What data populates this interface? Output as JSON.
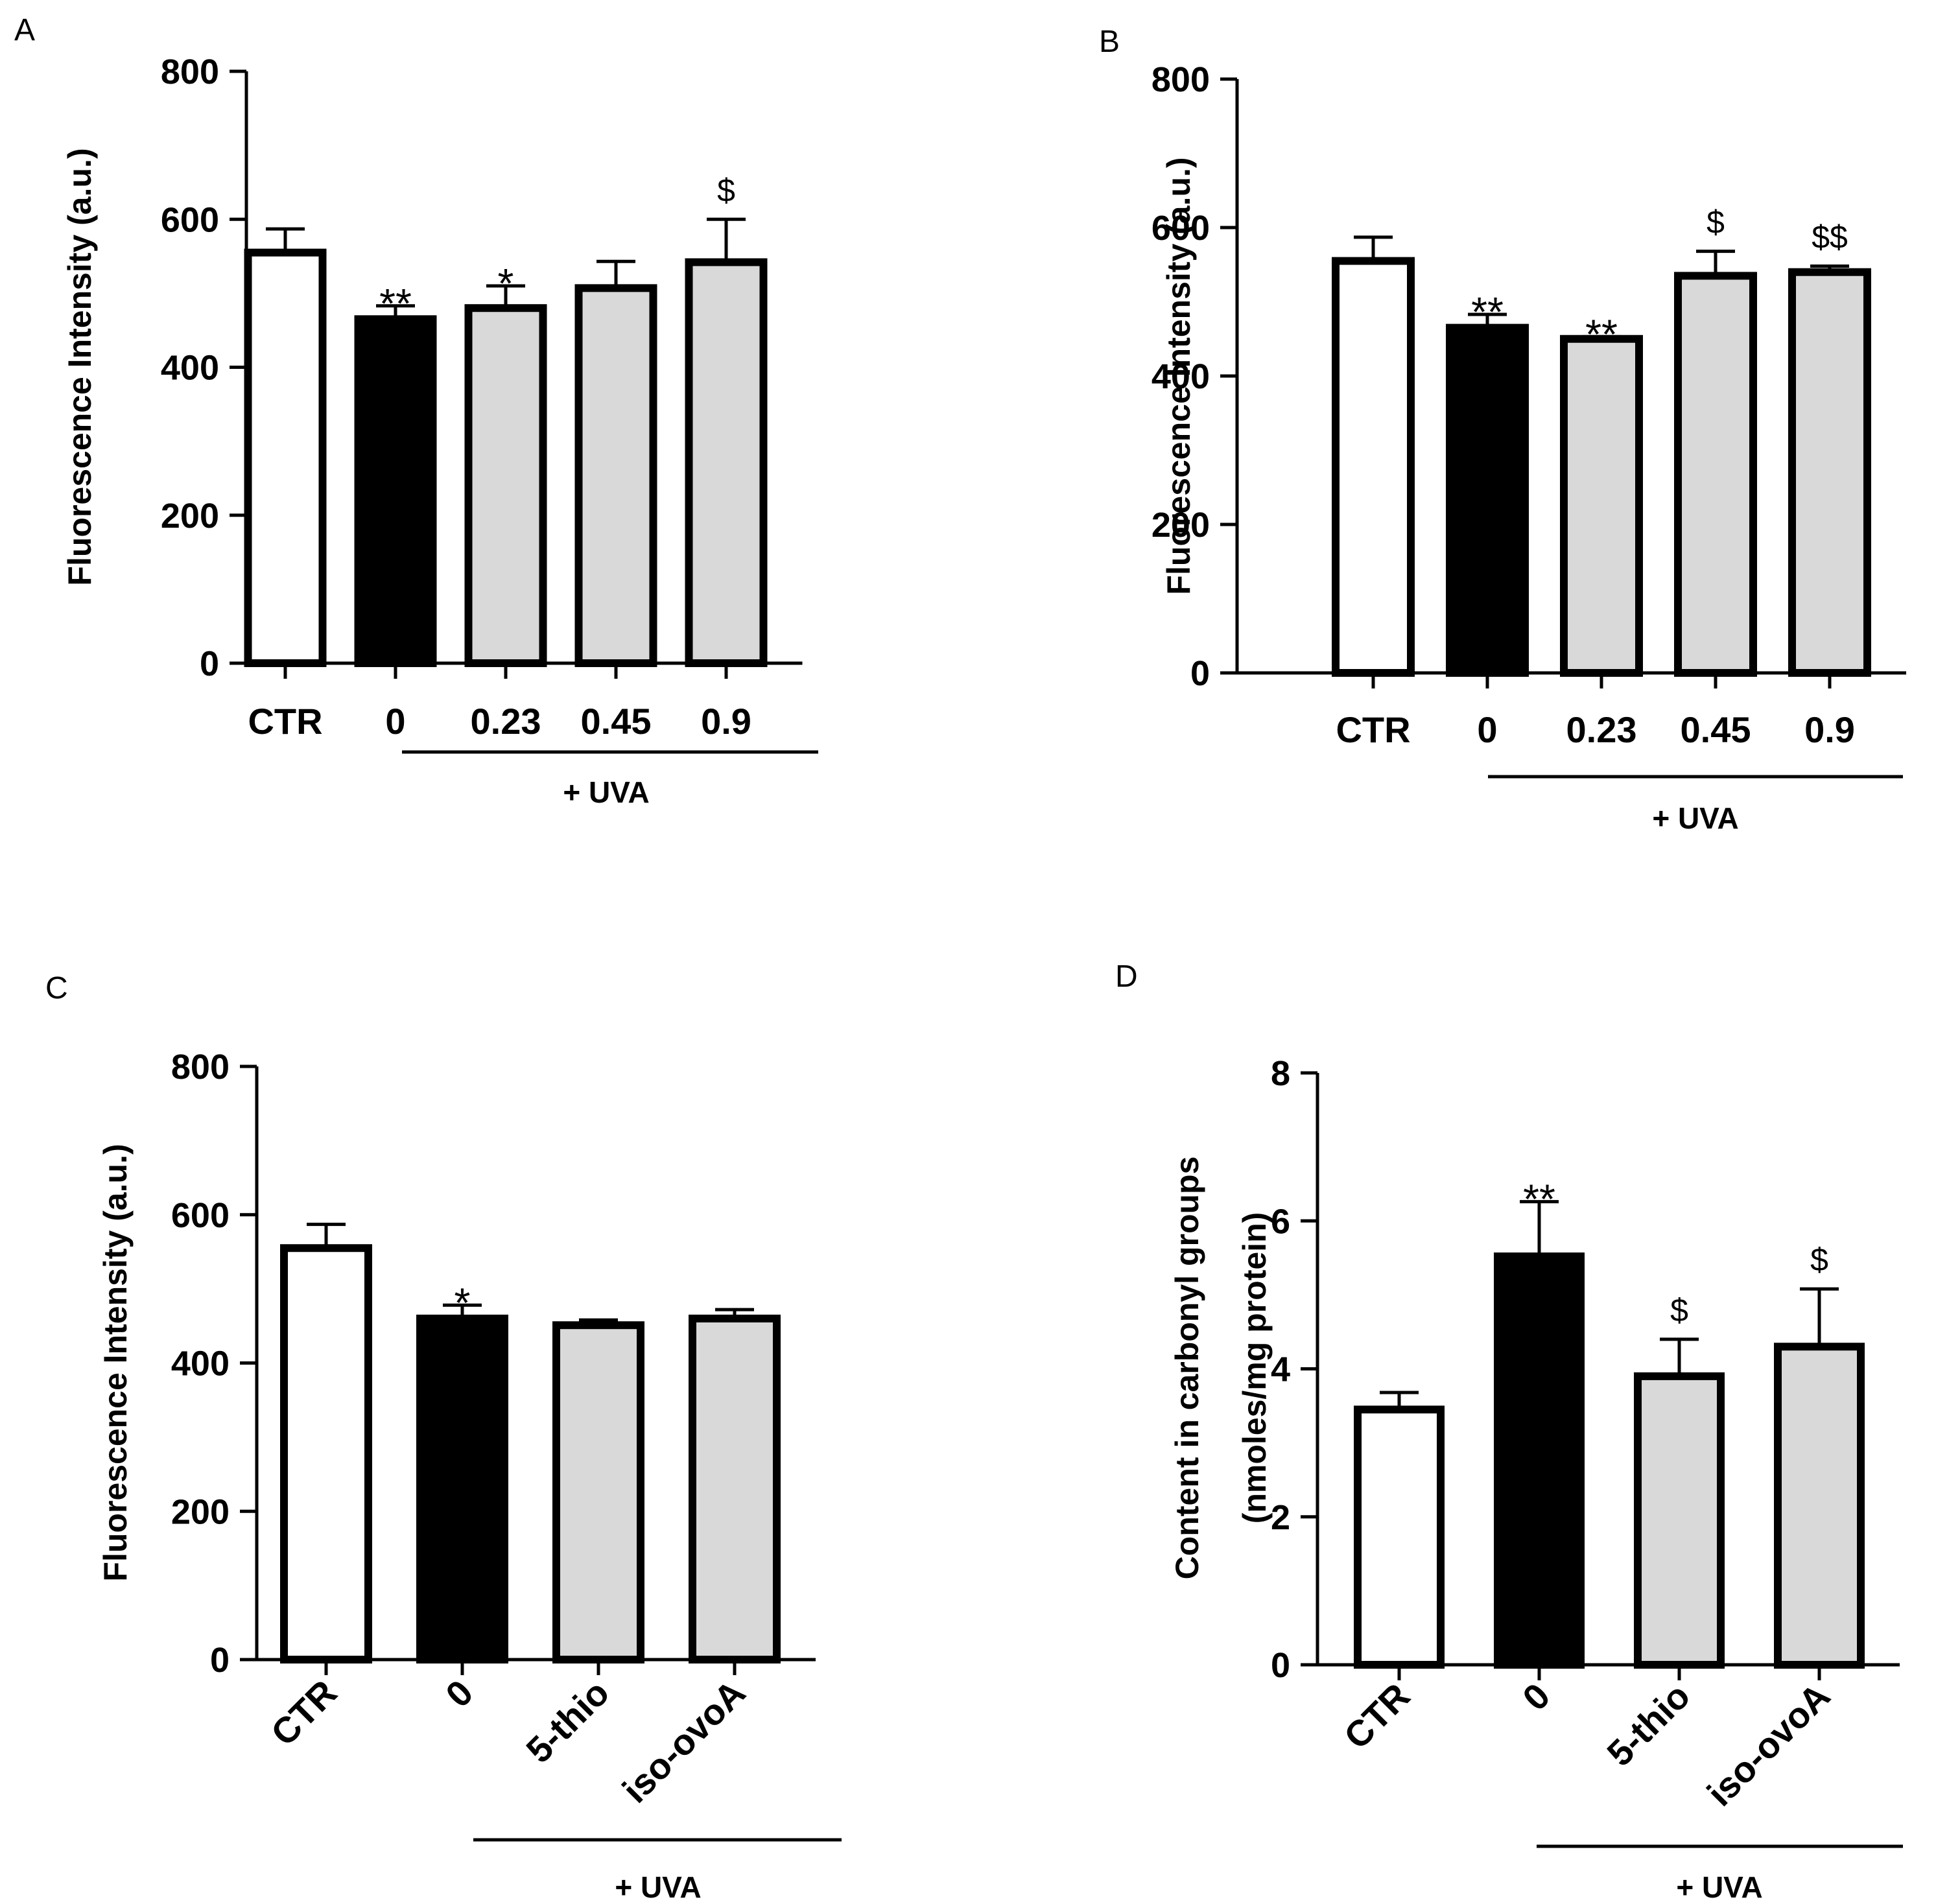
{
  "figure": {
    "panel_count": 4
  },
  "chart_data": [
    {
      "panel": "A",
      "type": "bar",
      "title": "",
      "xlabel": "",
      "ylabel": "Fluorescence Intensity (a.u.)",
      "ylim": [
        0,
        800
      ],
      "yticks": [
        0,
        200,
        400,
        600,
        800
      ],
      "categories": [
        "CTR",
        "0",
        "0.23",
        "0.45",
        "0.9"
      ],
      "values": [
        555,
        465,
        480,
        507,
        542
      ],
      "errors": [
        32,
        18,
        30,
        36,
        58
      ],
      "fills": [
        "#ffffff",
        "#000000",
        "#d9d9d9",
        "#d9d9d9",
        "#d9d9d9"
      ],
      "annotations": [
        "",
        "**",
        "*",
        "",
        "$"
      ],
      "group_label": "+ UVA",
      "group_span": [
        1,
        4
      ],
      "rotated_labels": false
    },
    {
      "panel": "B",
      "type": "bar",
      "title": "",
      "xlabel": "",
      "ylabel": "Fluorescence Intensity (a.u.)",
      "ylim": [
        0,
        800
      ],
      "yticks": [
        0,
        200,
        400,
        600,
        800
      ],
      "categories": [
        "CTR",
        "0",
        "0.23",
        "0.45",
        "0.9"
      ],
      "values": [
        555,
        465,
        450,
        535,
        540
      ],
      "errors": [
        32,
        18,
        3,
        33,
        8
      ],
      "fills": [
        "#ffffff",
        "#000000",
        "#d9d9d9",
        "#d9d9d9",
        "#d9d9d9"
      ],
      "annotations": [
        "",
        "**",
        "**",
        "$",
        "$$"
      ],
      "group_label": "+ UVA",
      "group_span": [
        1,
        4
      ],
      "rotated_labels": false
    },
    {
      "panel": "C",
      "type": "bar",
      "title": "",
      "xlabel": "",
      "ylabel": "Fluorescence Intensity (a.u.)",
      "ylim": [
        0,
        800
      ],
      "yticks": [
        0,
        200,
        400,
        600,
        800
      ],
      "categories": [
        "CTR",
        "0",
        "5-thio",
        "iso-ovoA"
      ],
      "values": [
        555,
        460,
        451,
        460
      ],
      "errors": [
        32,
        18,
        7,
        12
      ],
      "fills": [
        "#ffffff",
        "#000000",
        "#d9d9d9",
        "#d9d9d9"
      ],
      "annotations": [
        "",
        "*",
        "",
        ""
      ],
      "group_label": "+ UVA",
      "group_span": [
        1,
        3
      ],
      "rotated_labels": true
    },
    {
      "panel": "D",
      "type": "bar",
      "title": "",
      "xlabel": "",
      "ylabel": "Content in carbonyl groups",
      "ylabel2": "(nmoles/mg protein)",
      "ylim": [
        0,
        8
      ],
      "yticks": [
        0,
        2,
        4,
        6,
        8
      ],
      "categories": [
        "CTR",
        "0",
        "5-thio",
        "iso-ovoA"
      ],
      "values": [
        3.45,
        5.52,
        3.9,
        4.3
      ],
      "errors": [
        0.23,
        0.74,
        0.5,
        0.78
      ],
      "fills": [
        "#ffffff",
        "#000000",
        "#d9d9d9",
        "#d9d9d9"
      ],
      "annotations": [
        "",
        "**",
        "$",
        "$"
      ],
      "group_label": "+ UVA",
      "group_span": [
        1,
        3
      ],
      "rotated_labels": true
    }
  ]
}
